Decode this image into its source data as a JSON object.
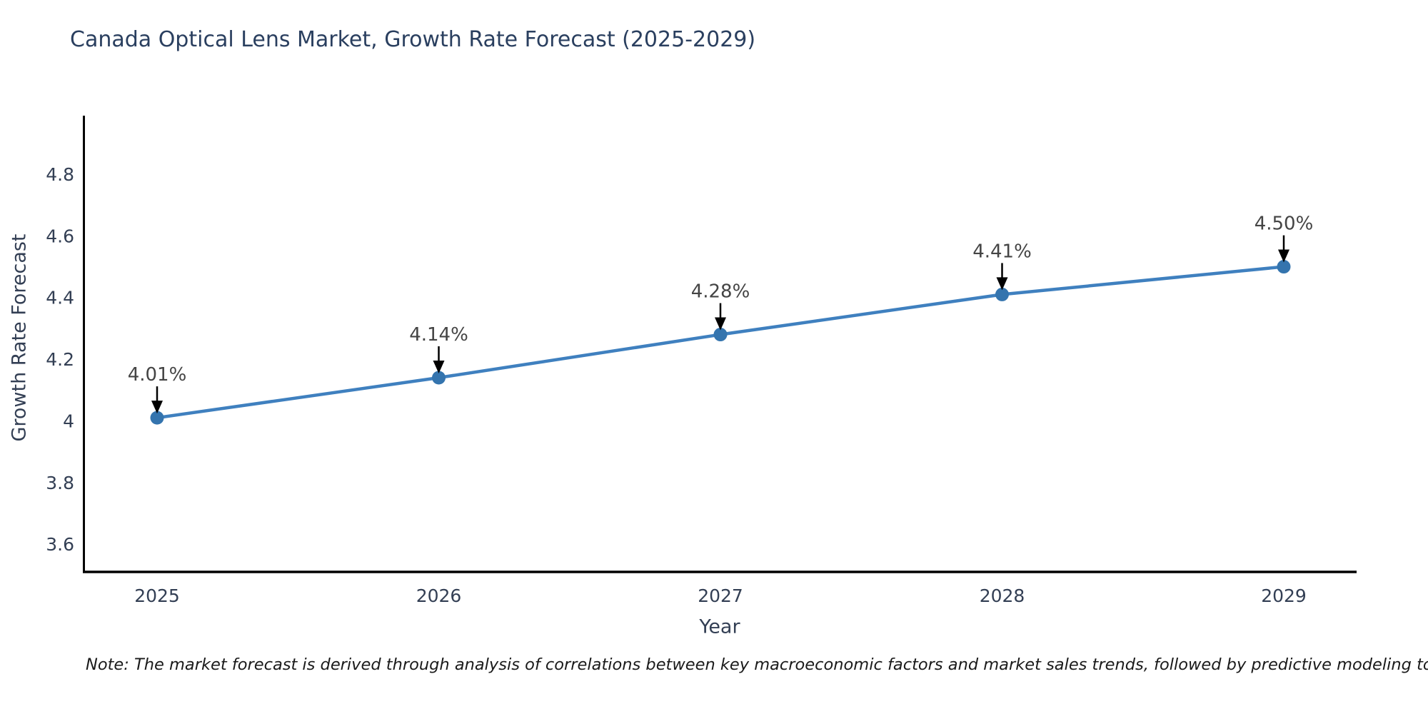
{
  "title": "Canada Optical Lens Market, Growth Rate Forecast (2025-2029)",
  "note": "Note: The market forecast is derived through analysis of correlations between key macroeconomic factors and market sales trends, followed by predictive modeling to project future sales",
  "chart_data": {
    "type": "line",
    "title": "Canada Optical Lens Market, Growth Rate Forecast (2025-2029)",
    "xlabel": "Year",
    "ylabel": "Growth Rate Forecast",
    "categories": [
      "2025",
      "2026",
      "2027",
      "2028",
      "2029"
    ],
    "series": [
      {
        "name": "Growth Rate Forecast",
        "values": [
          4.01,
          4.14,
          4.28,
          4.41,
          4.5
        ]
      }
    ],
    "point_labels": [
      "4.01%",
      "4.14%",
      "4.28%",
      "4.41%",
      "4.50%"
    ],
    "yticks": [
      3.6,
      3.8,
      4.0,
      4.2,
      4.4,
      4.6,
      4.8
    ],
    "ytick_labels": [
      "3.6",
      "3.8",
      "4",
      "4.2",
      "4.4",
      "4.6",
      "4.8"
    ],
    "ylim": [
      3.51,
      4.99
    ],
    "grid": false,
    "legend": "none",
    "annotation_style": "black arrow pointing down to each marker",
    "colors": {
      "line": "#3f80bf",
      "marker": "#3474ae",
      "axis": "#000000",
      "title_text": "#2a3f5f",
      "tick_text": "#333f54",
      "annotation_text": "#444444",
      "annotation_arrow": "#000000",
      "note_text": "#1a1a1a",
      "background": "#ffffff"
    }
  }
}
